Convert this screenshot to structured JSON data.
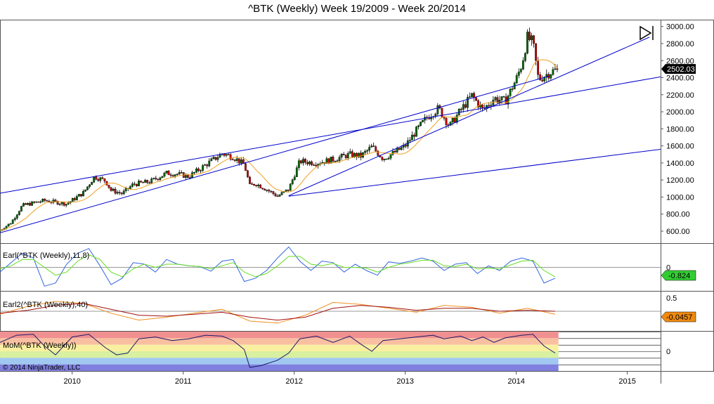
{
  "title": "^BTK (Weekly)  Week 19/2009 - Week 20/2014",
  "copyright": "© 2014 NinjaTrader, LLC",
  "colors": {
    "trendline": "#0000cc",
    "sma": "#f0a020",
    "earl_blue": "#3366dd",
    "earl_green": "#66dd22",
    "earl2_orange": "#f09020",
    "earl2_dark": "#a01010",
    "mom_line": "#1a1a6a",
    "candle_up": "#006600",
    "candle_down": "#cc0000",
    "label_green": "#33cc33",
    "label_orange": "#f08a10"
  },
  "chart_data": [
    {
      "type": "candlestick",
      "title": "^BTK (Weekly)  Week 19/2009 - Week 20/2014",
      "xlim": [
        2009.35,
        2015.3
      ],
      "x_ticks": [
        2010,
        2011,
        2012,
        2013,
        2014,
        2015
      ],
      "x_tick_labels": [
        "2010",
        "2011",
        "2012",
        "2013",
        "2014",
        "2015"
      ],
      "ylim": [
        460,
        3080
      ],
      "y_ticks": [
        600,
        800,
        1000,
        1200,
        1400,
        1600,
        1800,
        2000,
        2200,
        2400,
        2600,
        2800,
        3000
      ],
      "y_tick_labels": [
        "600.00",
        "800.00",
        "1000.00",
        "1200.00",
        "1400.00",
        "1600.00",
        "1800.00",
        "2000.00",
        "2200.00",
        "2400.00",
        "2600.00",
        "2800.00",
        "3000.00"
      ],
      "last_value_label": "2502.03",
      "price_anchors": {
        "x": [
          2009.35,
          2009.45,
          2009.55,
          2009.75,
          2009.95,
          2010.1,
          2010.2,
          2010.3,
          2010.35,
          2010.45,
          2010.55,
          2010.7,
          2010.85,
          2010.95,
          2011.05,
          2011.25,
          2011.35,
          2011.45,
          2011.55,
          2011.6,
          2011.65,
          2011.75,
          2011.85,
          2011.95,
          2012.05,
          2012.2,
          2012.35,
          2012.5,
          2012.6,
          2012.7,
          2012.8,
          2012.9,
          2013.0,
          2013.1,
          2013.2,
          2013.3,
          2013.4,
          2013.5,
          2013.6,
          2013.7,
          2013.8,
          2013.9,
          2014.0,
          2014.05,
          2014.1,
          2014.15,
          2014.2,
          2014.25,
          2014.3,
          2014.38
        ],
        "y": [
          610,
          700,
          900,
          960,
          920,
          1050,
          1240,
          1190,
          1080,
          1040,
          1150,
          1180,
          1280,
          1270,
          1240,
          1420,
          1510,
          1470,
          1380,
          1130,
          1160,
          1090,
          1010,
          1090,
          1420,
          1400,
          1440,
          1500,
          1480,
          1590,
          1450,
          1520,
          1600,
          1780,
          1940,
          2040,
          1830,
          2020,
          2190,
          2020,
          2160,
          2120,
          2380,
          2560,
          2870,
          2810,
          2380,
          2420,
          2460,
          2502
        ]
      },
      "sma_period": 13,
      "trendlines": [
        {
          "x": [
            2009.35,
            2014.3
          ],
          "y": [
            580,
            2420
          ]
        },
        {
          "x": [
            2009.35,
            2015.3
          ],
          "y": [
            1045,
            2410
          ]
        },
        {
          "x": [
            2011.95,
            2015.2
          ],
          "y": [
            1015,
            2875
          ]
        },
        {
          "x": [
            2011.95,
            2015.3
          ],
          "y": [
            1010,
            1560
          ]
        }
      ]
    },
    {
      "type": "line",
      "title": "Earl(^BTK (Weekly),11,8)",
      "ylim": [
        -1.5,
        1.5
      ],
      "zero_line": 0,
      "y_tick_labels": [
        "0"
      ],
      "last_value_label": "-0.824",
      "series": [
        {
          "x": [
            2009.35,
            2009.45,
            2009.55,
            2009.65,
            2009.75,
            2009.85,
            2009.95,
            2010.05,
            2010.15,
            2010.25,
            2010.35,
            2010.45,
            2010.55,
            2010.65,
            2010.75,
            2010.85,
            2010.95,
            2011.05,
            2011.15,
            2011.25,
            2011.35,
            2011.45,
            2011.55,
            2011.65,
            2011.75,
            2011.85,
            2011.95,
            2012.05,
            2012.15,
            2012.25,
            2012.35,
            2012.45,
            2012.55,
            2012.65,
            2012.75,
            2012.85,
            2012.95,
            2013.05,
            2013.15,
            2013.25,
            2013.35,
            2013.45,
            2013.55,
            2013.65,
            2013.75,
            2013.85,
            2013.95,
            2014.05,
            2014.15,
            2014.25,
            2014.35
          ],
          "y": [
            -0.3,
            0.3,
            0.9,
            0.6,
            -1.2,
            -1.0,
            0.2,
            0.9,
            1.2,
            0.1,
            -1.1,
            -0.7,
            0.3,
            0.2,
            -0.3,
            0.5,
            0.2,
            0.1,
            0.05,
            -0.25,
            0.4,
            0.5,
            -0.9,
            -0.7,
            -0.2,
            0.6,
            1.3,
            0.4,
            -0.2,
            0.4,
            0.3,
            -0.3,
            0.2,
            -0.2,
            -0.5,
            0.35,
            0.25,
            0.4,
            0.6,
            0.4,
            -0.2,
            0.2,
            0.3,
            -0.4,
            0.1,
            -0.2,
            0.4,
            0.6,
            0.4,
            -1.0,
            -0.7
          ]
        },
        {
          "x": [
            2009.35,
            2009.45,
            2009.55,
            2009.65,
            2009.75,
            2009.85,
            2009.95,
            2010.05,
            2010.15,
            2010.25,
            2010.35,
            2010.45,
            2010.55,
            2010.65,
            2010.75,
            2010.85,
            2010.95,
            2011.05,
            2011.15,
            2011.25,
            2011.35,
            2011.45,
            2011.55,
            2011.65,
            2011.75,
            2011.85,
            2011.95,
            2012.05,
            2012.15,
            2012.25,
            2012.35,
            2012.45,
            2012.55,
            2012.65,
            2012.75,
            2012.85,
            2012.95,
            2013.05,
            2013.15,
            2013.25,
            2013.35,
            2013.45,
            2013.55,
            2013.65,
            2013.75,
            2013.85,
            2013.95,
            2014.05,
            2014.15,
            2014.25,
            2014.35
          ],
          "y": [
            -0.1,
            0.1,
            0.5,
            0.5,
            0.0,
            -0.5,
            -0.3,
            0.4,
            0.8,
            0.5,
            -0.3,
            -0.6,
            -0.1,
            0.2,
            0.0,
            0.2,
            0.2,
            0.1,
            0.05,
            -0.1,
            0.1,
            0.3,
            -0.3,
            -0.6,
            -0.4,
            0.1,
            0.7,
            0.7,
            0.2,
            0.1,
            0.25,
            0.0,
            0.0,
            -0.05,
            -0.3,
            0.0,
            0.2,
            0.3,
            0.45,
            0.45,
            0.1,
            0.05,
            0.2,
            -0.1,
            -0.05,
            -0.1,
            0.15,
            0.4,
            0.45,
            -0.2,
            -0.6
          ]
        }
      ]
    },
    {
      "type": "line",
      "title": "Earl2(^BTK (Weekly),40)",
      "ylim": [
        -1.0,
        1.0
      ],
      "zero_line": 0,
      "y_tick_labels": [
        "0.5"
      ],
      "last_value_label": "-0.0457",
      "series": [
        {
          "x": [
            2009.35,
            2009.6,
            2009.85,
            2010.1,
            2010.35,
            2010.6,
            2010.85,
            2011.1,
            2011.35,
            2011.6,
            2011.85,
            2012.1,
            2012.35,
            2012.6,
            2012.85,
            2013.1,
            2013.35,
            2013.6,
            2013.85,
            2014.1,
            2014.35
          ],
          "y": [
            -0.15,
            0.25,
            0.5,
            0.4,
            -0.1,
            -0.45,
            -0.3,
            -0.1,
            0.1,
            -0.5,
            -0.6,
            -0.2,
            0.45,
            0.35,
            0.15,
            -0.05,
            0.3,
            0.2,
            -0.1,
            0.15,
            -0.15
          ]
        },
        {
          "x": [
            2009.35,
            2009.6,
            2009.85,
            2010.1,
            2010.35,
            2010.6,
            2010.85,
            2011.1,
            2011.35,
            2011.6,
            2011.85,
            2012.1,
            2012.35,
            2012.6,
            2012.85,
            2013.1,
            2013.35,
            2013.6,
            2013.85,
            2014.1,
            2014.35
          ],
          "y": [
            -0.1,
            0.05,
            0.3,
            0.4,
            0.1,
            -0.2,
            -0.25,
            -0.15,
            -0.05,
            -0.3,
            -0.45,
            -0.3,
            0.15,
            0.3,
            0.2,
            0.05,
            0.15,
            0.15,
            0.0,
            0.05,
            0.0
          ]
        }
      ]
    },
    {
      "type": "line",
      "title": "MoM(^BTK (Weekly))",
      "ylim": [
        -1.1,
        1.1
      ],
      "zero_line": 0,
      "y_tick_labels": [
        "0"
      ],
      "bands": [
        "#f09090",
        "#f8c0a0",
        "#f8f0a0",
        "#d8f0a0",
        "#a0c8f0",
        "#8080e0"
      ],
      "series": [
        {
          "x": [
            2009.35,
            2009.5,
            2009.65,
            2009.75,
            2009.85,
            2010.0,
            2010.15,
            2010.3,
            2010.4,
            2010.5,
            2010.6,
            2010.75,
            2010.9,
            2011.05,
            2011.2,
            2011.35,
            2011.45,
            2011.55,
            2011.6,
            2011.7,
            2011.85,
            2011.95,
            2012.05,
            2012.2,
            2012.35,
            2012.5,
            2012.6,
            2012.7,
            2012.8,
            2012.95,
            2013.1,
            2013.25,
            2013.35,
            2013.5,
            2013.6,
            2013.7,
            2013.8,
            2013.9,
            2014.05,
            2014.15,
            2014.25,
            2014.35
          ],
          "y": [
            0.5,
            0.9,
            0.95,
            0.3,
            -0.2,
            0.8,
            0.95,
            0.2,
            -0.2,
            -0.1,
            0.7,
            0.8,
            0.6,
            0.7,
            0.9,
            0.85,
            0.6,
            0.1,
            -0.9,
            -0.8,
            -0.5,
            -0.1,
            0.7,
            0.85,
            0.5,
            0.85,
            0.4,
            0.0,
            0.6,
            0.7,
            0.8,
            0.9,
            0.7,
            0.85,
            0.6,
            0.8,
            0.5,
            0.75,
            0.9,
            0.95,
            0.3,
            -0.1
          ]
        }
      ]
    }
  ]
}
